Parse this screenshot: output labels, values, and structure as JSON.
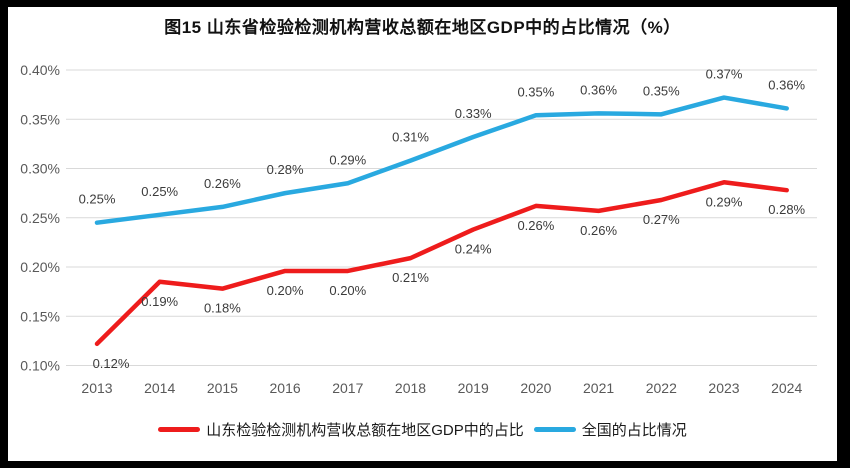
{
  "title": "图15  山东省检验检测机构营收总额在地区GDP中的占比情况（%）",
  "chart_data": {
    "type": "line",
    "title": "图15  山东省检验检测机构营收总额在地区GDP中的占比情况（%）",
    "categories": [
      "2013",
      "2014",
      "2015",
      "2016",
      "2017",
      "2018",
      "2019",
      "2020",
      "2021",
      "2022",
      "2023",
      "2024"
    ],
    "series": [
      {
        "id": "shandong",
        "name": "山东检验检测机构营收总额在地区GDP中的占比",
        "color": "#ee1c1c",
        "values": [
          0.122,
          0.185,
          0.178,
          0.196,
          0.196,
          0.209,
          0.238,
          0.262,
          0.257,
          0.268,
          0.286,
          0.278
        ],
        "labels": [
          "0.12%",
          "0.19%",
          "0.18%",
          "0.20%",
          "0.20%",
          "0.21%",
          "0.24%",
          "0.26%",
          "0.26%",
          "0.27%",
          "0.29%",
          "0.28%"
        ],
        "label_position": "below"
      },
      {
        "id": "national",
        "name": "全国的占比情况",
        "color": "#29a9e0",
        "values": [
          0.245,
          0.253,
          0.261,
          0.275,
          0.285,
          0.308,
          0.332,
          0.354,
          0.356,
          0.355,
          0.372,
          0.361
        ],
        "labels": [
          "0.25%",
          "0.25%",
          "0.26%",
          "0.28%",
          "0.29%",
          "0.31%",
          "0.33%",
          "0.35%",
          "0.36%",
          "0.35%",
          "0.37%",
          "0.36%"
        ],
        "label_position": "above"
      }
    ],
    "y_axis": {
      "min": 0.1,
      "max": 0.4,
      "step": 0.05,
      "tick_labels": [
        "0.40%",
        "0.35%",
        "0.30%",
        "0.25%",
        "0.20%",
        "0.15%",
        "0.10%"
      ]
    },
    "x_axis": {
      "tick_labels": [
        "2013",
        "2014",
        "2015",
        "2016",
        "2017",
        "2018",
        "2019",
        "2020",
        "2021",
        "2022",
        "2023",
        "2024"
      ]
    },
    "grid": true,
    "legend_position": "bottom",
    "colors": {
      "gridline": "#d9d9d9",
      "axis_text": "#595959",
      "data_label_text": "#3b3b3b",
      "frame_border": "#000000",
      "plot_background": "#ffffff"
    }
  }
}
